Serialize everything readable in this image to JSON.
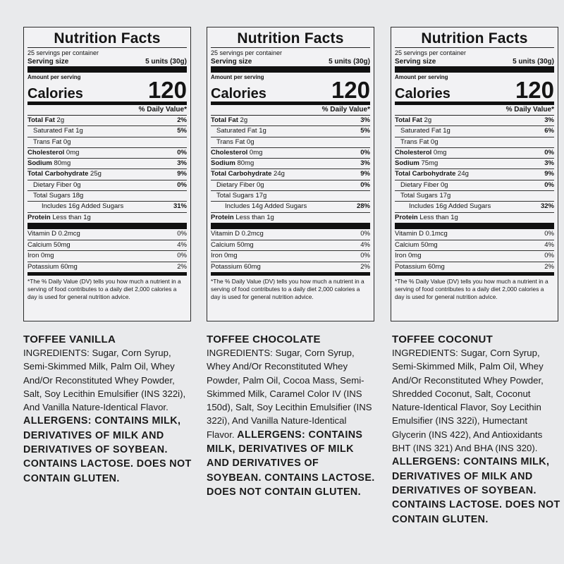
{
  "panels": [
    {
      "title": "Nutrition Facts",
      "servings": "25 servings per container",
      "serving_label": "Serving size",
      "serving_value": "5 units (30g)",
      "amount_label": "Amount per serving",
      "calories_label": "Calories",
      "calories": "120",
      "dv_header": "% Daily Value*",
      "rows": [
        {
          "b": "Total Fat",
          "v": " 2g",
          "pct": "2%"
        },
        {
          "b": "",
          "v": "Saturated Fat 1g",
          "pct": "5%"
        },
        {
          "b": "",
          "v": "Trans Fat 0g",
          "pct": ""
        },
        {
          "b": "Cholesterol",
          "v": " 0mg",
          "pct": "0%"
        },
        {
          "b": "Sodium",
          "v": " 80mg",
          "pct": "3%"
        },
        {
          "b": "Total Carbohydrate",
          "v": " 25g",
          "pct": "9%"
        },
        {
          "b": "",
          "v": "Dietary Fiber 0g",
          "pct": "0%"
        },
        {
          "b": "",
          "v": "Total Sugars 18g",
          "pct": ""
        },
        {
          "b": "",
          "v": "Includes 16g Added Sugars",
          "pct": "31%"
        },
        {
          "b": "Protein",
          "v": " Less than 1g",
          "pct": ""
        }
      ],
      "vitamins": [
        {
          "v": "Vitamin D 0.2mcg",
          "pct": "0%"
        },
        {
          "v": "Calcium 50mg",
          "pct": "4%"
        },
        {
          "v": "Iron 0mg",
          "pct": "0%"
        },
        {
          "v": "Potassium 60mg",
          "pct": "2%"
        }
      ],
      "footnote": "*The % Daily Value (DV) tells you how much a nutrient in a serving of food contributes to a daily diet 2,000 calories a day is used for general nutrition advice."
    },
    {
      "title": "Nutrition Facts",
      "servings": "25 servings per container",
      "serving_label": "Serving size",
      "serving_value": "5 units (30g)",
      "amount_label": "Amount per serving",
      "calories_label": "Calories",
      "calories": "120",
      "dv_header": "% Daily Value*",
      "rows": [
        {
          "b": "Total Fat",
          "v": " 2g",
          "pct": "3%"
        },
        {
          "b": "",
          "v": "Saturated Fat 1g",
          "pct": "5%"
        },
        {
          "b": "",
          "v": "Trans Fat 0g",
          "pct": ""
        },
        {
          "b": "Cholesterol",
          "v": " 0mg",
          "pct": "0%"
        },
        {
          "b": "Sodium",
          "v": " 80mg",
          "pct": "3%"
        },
        {
          "b": "Total Carbohydrate",
          "v": " 24g",
          "pct": "9%"
        },
        {
          "b": "",
          "v": "Dietary Fiber 0g",
          "pct": "0%"
        },
        {
          "b": "",
          "v": "Total Sugars 17g",
          "pct": ""
        },
        {
          "b": "",
          "v": "Includes 14g Added Sugars",
          "pct": "28%"
        },
        {
          "b": "Protein",
          "v": " Less than 1g",
          "pct": ""
        }
      ],
      "vitamins": [
        {
          "v": "Vitamin D 0.2mcg",
          "pct": "0%"
        },
        {
          "v": "Calcium 50mg",
          "pct": "4%"
        },
        {
          "v": "Iron 0mg",
          "pct": "0%"
        },
        {
          "v": "Potassium 60mg",
          "pct": "2%"
        }
      ],
      "footnote": "*The % Daily Value (DV) tells you how much a nutrient in a serving of food contributes to a daily diet 2,000 calories a day is used for general nutrition advice."
    },
    {
      "title": "Nutrition Facts",
      "servings": "25 servings per container",
      "serving_label": "Serving size",
      "serving_value": "5 units (30g)",
      "amount_label": "Amount per serving",
      "calories_label": "Calories",
      "calories": "120",
      "dv_header": "% Daily Value*",
      "rows": [
        {
          "b": "Total Fat",
          "v": " 2g",
          "pct": "3%"
        },
        {
          "b": "",
          "v": "Saturated Fat 1g",
          "pct": "6%"
        },
        {
          "b": "",
          "v": "Trans Fat 0g",
          "pct": ""
        },
        {
          "b": "Cholesterol",
          "v": " 0mg",
          "pct": "0%"
        },
        {
          "b": "Sodium",
          "v": " 75mg",
          "pct": "3%"
        },
        {
          "b": "Total Carbohydrate",
          "v": " 24g",
          "pct": "9%"
        },
        {
          "b": "",
          "v": "Dietary Fiber 0g",
          "pct": "0%"
        },
        {
          "b": "",
          "v": "Total Sugars 17g",
          "pct": ""
        },
        {
          "b": "",
          "v": "Includes 16g Added Sugars",
          "pct": "32%"
        },
        {
          "b": "Protein",
          "v": " Less than 1g",
          "pct": ""
        }
      ],
      "vitamins": [
        {
          "v": "Vitamin D 0.1mcg",
          "pct": "0%"
        },
        {
          "v": "Calcium 50mg",
          "pct": "4%"
        },
        {
          "v": "Iron 0mg",
          "pct": "0%"
        },
        {
          "v": "Potassium 60mg",
          "pct": "2%"
        }
      ],
      "footnote": "*The % Daily Value (DV) tells you how much a nutrient in a serving of food contributes to a daily diet 2,000 calories a day is used for general nutrition advice."
    }
  ],
  "ingredients": [
    {
      "flavor": "TOFFEE VANILLA",
      "text": "INGREDIENTS: Sugar, Corn Syrup, Semi-Skimmed Milk, Palm Oil, Whey And/Or Reconstituted Whey Powder, Salt, Soy Lecithin Emulsifier (INS 322i), And Vanilla Nature-Identical Flavor.",
      "allergens": "ALLERGENS: CONTAINS MILK, DERIVATIVES OF MILK AND DERIVATIVES OF SOYBEAN. CONTAINS LACTOSE. DOES NOT CONTAIN GLUTEN."
    },
    {
      "flavor": "TOFFEE CHOCOLATE",
      "text": "INGREDIENTS: Sugar, Corn Syrup, Whey And/Or Reconstituted Whey Powder, Palm Oil, Cocoa Mass, Semi-Skimmed Milk, Caramel Color IV (INS 150d), Salt, Soy Lecithin Emulsifier (INS 322i), And Vanilla Nature-Identical Flavor.",
      "allergens": "ALLERGENS: CONTAINS MILK, DERIVATIVES OF MILK AND DERIVATIVES OF SOYBEAN. CONTAINS LACTOSE. DOES NOT CONTAIN GLUTEN."
    },
    {
      "flavor": "TOFFEE COCONUT",
      "text": "INGREDIENTS: Sugar, Corn Syrup, Semi-Skimmed Milk, Palm Oil, Whey And/Or Reconstituted Whey Powder, Shredded Coconut, Salt, Coconut Nature-Identical Flavor, Soy Lecithin Emulsifier (INS 322i), Humectant Glycerin (INS 422), And Antioxidants BHT (INS 321) And BHA (INS 320).",
      "allergens": "ALLERGENS: CONTAINS MILK, DERIVATIVES OF MILK AND DERIVATIVES OF SOYBEAN. CONTAINS LACTOSE. DOES NOT CONTAIN GLUTEN."
    }
  ]
}
